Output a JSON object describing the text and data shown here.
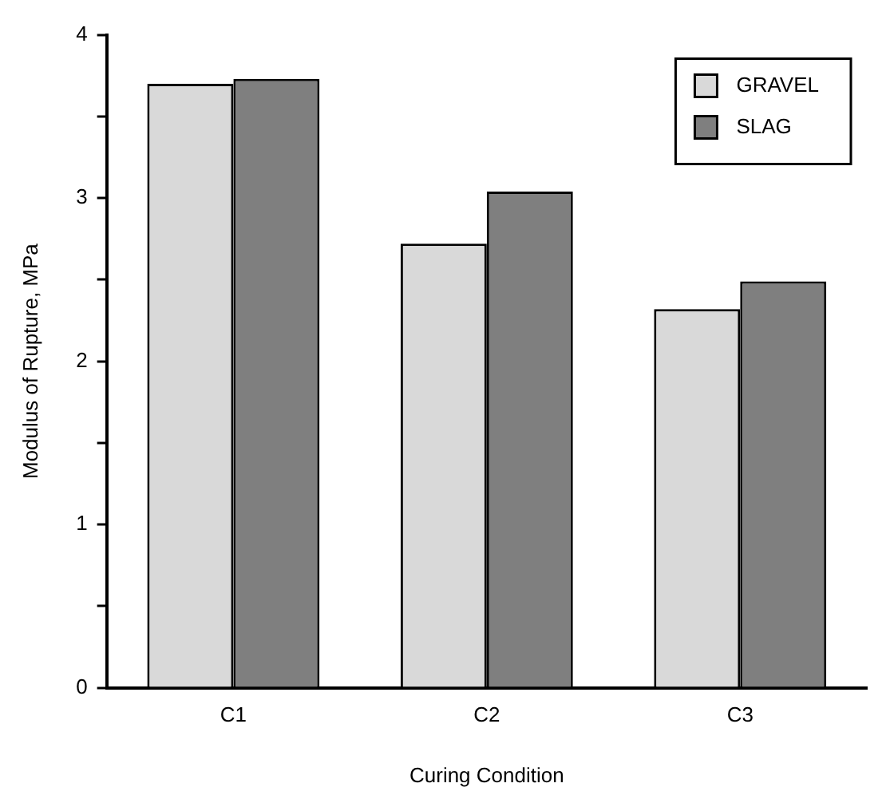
{
  "chart_data": {
    "type": "bar",
    "xlabel": "Curing Condition",
    "ylabel": "Modulus of Rupture, MPa",
    "categories": [
      "C1",
      "C2",
      "C3"
    ],
    "series": [
      {
        "name": "GRAVEL",
        "color": "#d9d9d9",
        "values": [
          3.7,
          2.72,
          2.32
        ]
      },
      {
        "name": "SLAG",
        "color": "#7f7f7f",
        "values": [
          3.73,
          3.04,
          2.49
        ]
      }
    ],
    "ylim": [
      0,
      4
    ],
    "yticks": [
      0,
      {
        "value": 0.5,
        "label": null
      },
      1,
      {
        "value": 1.5,
        "label": null
      },
      2,
      {
        "value": 2.5,
        "label": null
      },
      3,
      {
        "value": 3.5,
        "label": null
      },
      4
    ],
    "grid": false,
    "legend": "top right"
  }
}
